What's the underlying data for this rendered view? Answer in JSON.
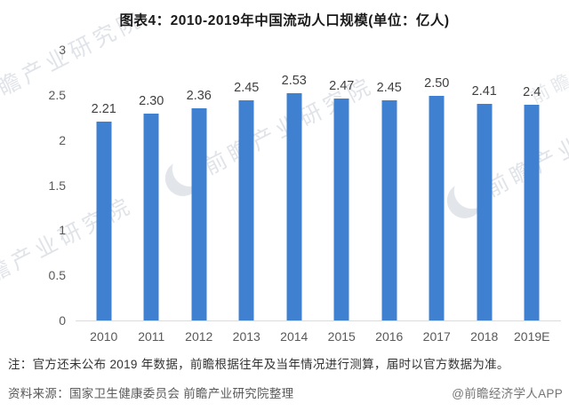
{
  "title": "图表4：2010-2019年中国流动人口规模(单位：亿人)",
  "chart_data": {
    "type": "bar",
    "title": "图表4：2010-2019年中国流动人口规模(单位：亿人)",
    "unit": "亿人",
    "categories": [
      "2010",
      "2011",
      "2012",
      "2013",
      "2014",
      "2015",
      "2016",
      "2017",
      "2018",
      "2019E"
    ],
    "values": [
      2.21,
      2.3,
      2.36,
      2.45,
      2.53,
      2.47,
      2.45,
      2.5,
      2.41,
      2.4
    ],
    "value_labels": [
      "2.21",
      "2.30",
      "2.36",
      "2.45",
      "2.53",
      "2.47",
      "2.45",
      "2.50",
      "2.41",
      "2.4"
    ],
    "ylim": [
      0,
      3
    ],
    "yticks": [
      "3",
      "2.5",
      "2",
      "1.5",
      "1",
      "0.5",
      "0"
    ],
    "bar_color": "#4080d0",
    "grid": false,
    "legend_position": "none"
  },
  "footer": {
    "note": "注：官方还未公布 2019 年数据，前瞻根据往年及当年情况进行测算，届时以官方数据为准。",
    "source": "资料来源：国家卫生健康委员会 前瞻产业研究院整理",
    "credit": "@前瞻经济学人APP"
  },
  "watermark": {
    "text": "前瞻产业研究院"
  }
}
